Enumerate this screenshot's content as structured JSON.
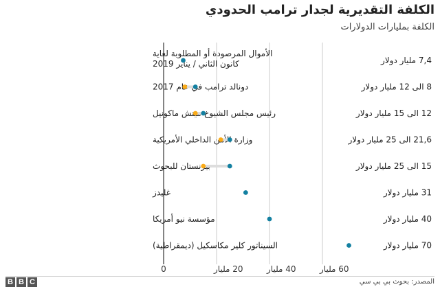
{
  "title": "الكلفة التقديرية لجدار ترامب الحدودي",
  "subtitle": "الكلفة بمليارات الدولارات",
  "source": "المصدر: بحوث بي بي سي",
  "logo": [
    "B",
    "B",
    "C"
  ],
  "colors": {
    "teal": "#1380A1",
    "gold": "#FAAB18",
    "range": "#dddddd",
    "grid": "#cbcbcb",
    "axis": "#333333"
  },
  "chart_data": {
    "type": "dot-range",
    "title": "الكلفة التقديرية لجدار ترامب الحدودي",
    "subtitle": "الكلفة بمليارات الدولارات",
    "xlim": [
      0,
      70
    ],
    "xticks": [
      {
        "value": 0,
        "label": "0"
      },
      {
        "value": 20,
        "label": "20 مليار"
      },
      {
        "value": 40,
        "label": "40 مليار"
      },
      {
        "value": 60,
        "label": "60 مليار"
      }
    ],
    "rows": [
      {
        "source": [
          "الأموال المرصودة أو المطلوبة لغاية",
          "كانون الثاني / يناير 2019"
        ],
        "value_label": "7,4 مليار دولار",
        "low": 7.4,
        "high": 7.4
      },
      {
        "source": [
          "دونالد ترامب في عام 2017"
        ],
        "value_label": "8 الى 12 مليار دولار",
        "low": 8,
        "high": 12
      },
      {
        "source": [
          "رئيس مجلس الشيوخ ميتش ماكونيل"
        ],
        "value_label": "12 الى 15 مليار دولار",
        "low": 12,
        "high": 15
      },
      {
        "source": [
          "وزارة الأمن الداخلي الأمريكية"
        ],
        "value_label": "21,6 الى 25 مليار دولار",
        "low": 21.6,
        "high": 25
      },
      {
        "source": [
          "بيرنستان للبحوث"
        ],
        "value_label": "15 الى 25 مليار دولار",
        "low": 15,
        "high": 25
      },
      {
        "source": [
          "غليدز"
        ],
        "value_label": "31 مليار دولار",
        "low": 31,
        "high": 31
      },
      {
        "source": [
          "مؤسسة نيو أمريكا"
        ],
        "value_label": "40 مليار دولار",
        "low": 40,
        "high": 40
      },
      {
        "source": [
          "السيناتور كلير مكاسكيل (ديمقراطية)"
        ],
        "value_label": "70 مليار دولار",
        "low": 70,
        "high": 70
      }
    ]
  }
}
